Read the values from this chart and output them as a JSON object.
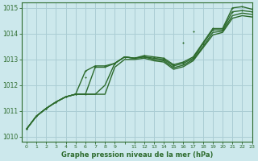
{
  "title": "Graphe pression niveau de la mer (hPa)",
  "bg_color": "#cce8ec",
  "grid_color": "#aacdd4",
  "line_color": "#2d6b2d",
  "xlim": [
    -0.5,
    23
  ],
  "ylim": [
    1009.8,
    1015.2
  ],
  "yticks": [
    1010,
    1011,
    1012,
    1013,
    1014,
    1015
  ],
  "xtick_labels": [
    "0",
    "1",
    "2",
    "3",
    "4",
    "5",
    "6",
    "7",
    "8",
    "9",
    "",
    "11",
    "12",
    "13",
    "14",
    "15",
    "16",
    "17",
    "18",
    "19",
    "20",
    "21",
    "22",
    "23"
  ],
  "series": [
    {
      "x": [
        0,
        1,
        2,
        3,
        4,
        5,
        6,
        7,
        8,
        9,
        10,
        11,
        12,
        13,
        14,
        15,
        16,
        17,
        18,
        19,
        20,
        21,
        22,
        23
      ],
      "y": [
        1010.3,
        1010.8,
        1011.1,
        1011.35,
        1011.55,
        1011.65,
        1012.55,
        1012.75,
        1012.75,
        1012.85,
        1013.1,
        1013.05,
        1013.15,
        1013.1,
        1013.05,
        1012.8,
        1012.9,
        1013.1,
        1013.65,
        1014.2,
        1014.2,
        1015.0,
        1015.05,
        1014.95
      ],
      "marker": true,
      "lw": 1.0
    },
    {
      "x": [
        0,
        1,
        2,
        3,
        4,
        5,
        6,
        7,
        8,
        9,
        10,
        11,
        12,
        13,
        14,
        15,
        16,
        17,
        18,
        19,
        20,
        21,
        22,
        23
      ],
      "y": [
        1010.3,
        1010.8,
        1011.1,
        1011.35,
        1011.55,
        1011.65,
        1011.65,
        1012.7,
        1012.7,
        1012.85,
        1013.1,
        1013.05,
        1013.1,
        1013.05,
        1013.0,
        1012.75,
        1012.85,
        1013.05,
        1013.6,
        1014.15,
        1014.15,
        1014.85,
        1014.9,
        1014.85
      ],
      "marker": true,
      "lw": 1.0
    },
    {
      "x": [
        0,
        1,
        2,
        3,
        4,
        5,
        6,
        7,
        8,
        9,
        10,
        11,
        12,
        13,
        14,
        15,
        16,
        17,
        18,
        19,
        20,
        21,
        22,
        23
      ],
      "y": [
        1010.3,
        1010.8,
        1011.1,
        1011.35,
        1011.55,
        1011.65,
        1011.65,
        1011.65,
        1012.0,
        1012.85,
        1013.1,
        1013.05,
        1013.1,
        1013.0,
        1012.95,
        1012.68,
        1012.78,
        1013.0,
        1013.5,
        1014.05,
        1014.1,
        1014.7,
        1014.8,
        1014.75
      ],
      "marker": false,
      "lw": 1.0
    },
    {
      "x": [
        0,
        1,
        2,
        3,
        4,
        5,
        6,
        7,
        8,
        9,
        10,
        11,
        12,
        13,
        14,
        15,
        16,
        17,
        18,
        19,
        20,
        21,
        22,
        23
      ],
      "y": [
        1010.3,
        1010.8,
        1011.1,
        1011.35,
        1011.55,
        1011.65,
        1011.65,
        1011.65,
        1011.65,
        1012.7,
        1013.0,
        1013.0,
        1013.05,
        1012.95,
        1012.9,
        1012.62,
        1012.72,
        1012.95,
        1013.45,
        1013.95,
        1014.05,
        1014.6,
        1014.7,
        1014.65
      ],
      "marker": false,
      "lw": 1.0
    },
    {
      "x": [
        5,
        6,
        7,
        14,
        15,
        16,
        17
      ],
      "y": [
        1011.65,
        1012.3,
        1012.7,
        1013.0,
        1012.8,
        1013.65,
        1014.1
      ],
      "marker": true,
      "lw": 0.0
    }
  ]
}
